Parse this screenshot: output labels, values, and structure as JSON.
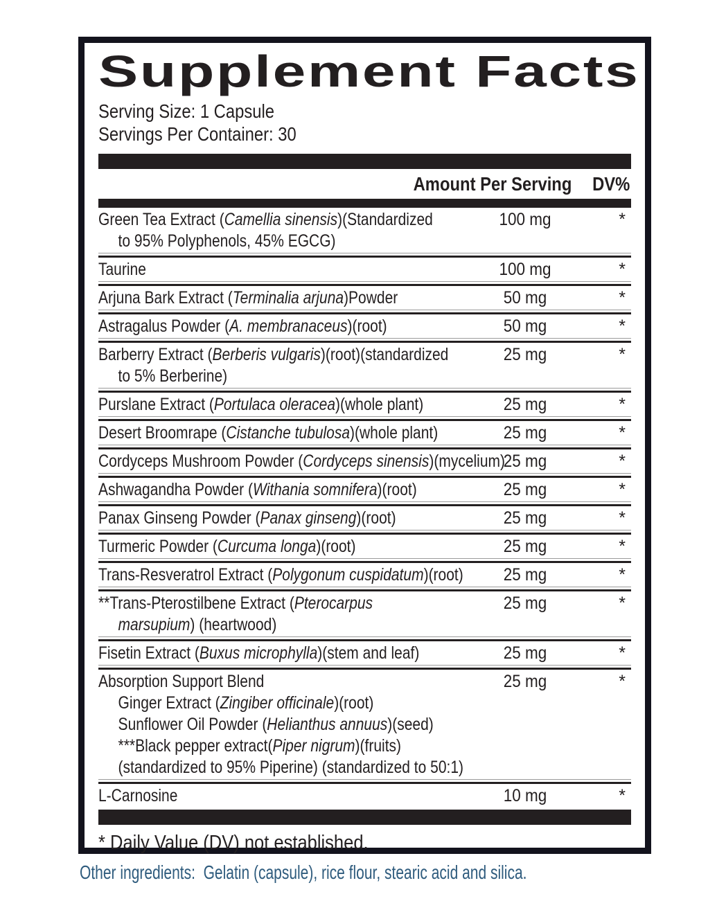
{
  "panel": {
    "title": "Supplement Facts",
    "serving_size": "Serving Size: 1 Capsule",
    "servings_per_container": "Servings Per Container: 30",
    "columns": {
      "amount": "Amount Per Serving",
      "dv": "DV%"
    },
    "rows": [
      {
        "amount": "100 mg",
        "dv": "*",
        "lines": [
          {
            "indent": false,
            "seg": [
              {
                "t": "Green Tea Extract (",
                "i": false
              },
              {
                "t": "Camellia sinensis",
                "i": true
              },
              {
                "t": ")(Standardized",
                "i": false
              }
            ]
          },
          {
            "indent": true,
            "seg": [
              {
                "t": "to 95% Polyphenols, 45% EGCG)",
                "i": false
              }
            ]
          }
        ]
      },
      {
        "amount": "100 mg",
        "dv": "*",
        "lines": [
          {
            "indent": false,
            "seg": [
              {
                "t": "Taurine",
                "i": false
              }
            ]
          }
        ]
      },
      {
        "amount": "50 mg",
        "dv": "*",
        "lines": [
          {
            "indent": false,
            "seg": [
              {
                "t": "Arjuna Bark Extract (",
                "i": false
              },
              {
                "t": "Terminalia arjuna",
                "i": true
              },
              {
                "t": ")Powder",
                "i": false
              }
            ]
          }
        ]
      },
      {
        "amount": "50 mg",
        "dv": "*",
        "lines": [
          {
            "indent": false,
            "seg": [
              {
                "t": "Astragalus Powder (",
                "i": false
              },
              {
                "t": "A. membranaceus",
                "i": true
              },
              {
                "t": ")(root)",
                "i": false
              }
            ]
          }
        ]
      },
      {
        "amount": "25 mg",
        "dv": "*",
        "lines": [
          {
            "indent": false,
            "seg": [
              {
                "t": "Barberry Extract (",
                "i": false
              },
              {
                "t": "Berberis vulgaris",
                "i": true
              },
              {
                "t": ")(root)(standardized",
                "i": false
              }
            ]
          },
          {
            "indent": true,
            "seg": [
              {
                "t": "to 5% Berberine)",
                "i": false
              }
            ]
          }
        ]
      },
      {
        "amount": "25 mg",
        "dv": "*",
        "lines": [
          {
            "indent": false,
            "seg": [
              {
                "t": "Purslane Extract (",
                "i": false
              },
              {
                "t": "Portulaca oleracea",
                "i": true
              },
              {
                "t": ")(whole plant)",
                "i": false
              }
            ]
          }
        ]
      },
      {
        "amount": "25 mg",
        "dv": "*",
        "lines": [
          {
            "indent": false,
            "seg": [
              {
                "t": "Desert Broomrape (",
                "i": false
              },
              {
                "t": "Cistanche tubulosa",
                "i": true
              },
              {
                "t": ")(whole plant)",
                "i": false
              }
            ]
          }
        ]
      },
      {
        "amount": "25 mg",
        "dv": "*",
        "lines": [
          {
            "indent": false,
            "seg": [
              {
                "t": "Cordyceps Mushroom Powder (",
                "i": false
              },
              {
                "t": "Cordyceps sinensis",
                "i": true
              },
              {
                "t": ")(mycelium)",
                "i": false
              }
            ]
          }
        ]
      },
      {
        "amount": "25 mg",
        "dv": "*",
        "lines": [
          {
            "indent": false,
            "seg": [
              {
                "t": "Ashwagandha Powder (",
                "i": false
              },
              {
                "t": "Withania somnifera",
                "i": true
              },
              {
                "t": ")(root)",
                "i": false
              }
            ]
          }
        ]
      },
      {
        "amount": "25 mg",
        "dv": "*",
        "lines": [
          {
            "indent": false,
            "seg": [
              {
                "t": "Panax Ginseng Powder (",
                "i": false
              },
              {
                "t": "Panax ginseng",
                "i": true
              },
              {
                "t": ")(root)",
                "i": false
              }
            ]
          }
        ]
      },
      {
        "amount": "25 mg",
        "dv": "*",
        "lines": [
          {
            "indent": false,
            "seg": [
              {
                "t": "Turmeric Powder (",
                "i": false
              },
              {
                "t": "Curcuma longa",
                "i": true
              },
              {
                "t": ")(root)",
                "i": false
              }
            ]
          }
        ]
      },
      {
        "amount": "25 mg",
        "dv": "*",
        "lines": [
          {
            "indent": false,
            "seg": [
              {
                "t": "Trans-Resveratrol Extract (",
                "i": false
              },
              {
                "t": "Polygonum cuspidatum",
                "i": true
              },
              {
                "t": ")(root)",
                "i": false
              }
            ]
          }
        ]
      },
      {
        "amount": "25 mg",
        "dv": "*",
        "lines": [
          {
            "indent": false,
            "seg": [
              {
                "t": "**Trans-Pterostilbene Extract (",
                "i": false
              },
              {
                "t": "Pterocarpus",
                "i": true
              }
            ]
          },
          {
            "indent": true,
            "seg": [
              {
                "t": "marsupium",
                "i": true
              },
              {
                "t": ") (heartwood)",
                "i": false
              }
            ]
          }
        ]
      },
      {
        "amount": "25 mg",
        "dv": "*",
        "lines": [
          {
            "indent": false,
            "seg": [
              {
                "t": "Fisetin Extract (",
                "i": false
              },
              {
                "t": "Buxus microphylla",
                "i": true
              },
              {
                "t": ")(stem and leaf)",
                "i": false
              }
            ]
          }
        ]
      },
      {
        "amount": "25 mg",
        "dv": "*",
        "lines": [
          {
            "indent": false,
            "seg": [
              {
                "t": "Absorption Support Blend",
                "i": false
              }
            ]
          },
          {
            "indent": true,
            "seg": [
              {
                "t": "Ginger Extract (",
                "i": false
              },
              {
                "t": "Zingiber officinale",
                "i": true
              },
              {
                "t": ")(root)",
                "i": false
              }
            ]
          },
          {
            "indent": true,
            "seg": [
              {
                "t": "Sunflower Oil Powder (",
                "i": false
              },
              {
                "t": "Helianthus annuus",
                "i": true
              },
              {
                "t": ")(seed)",
                "i": false
              }
            ]
          },
          {
            "indent": true,
            "seg": [
              {
                "t": "***Black pepper extract(",
                "i": false
              },
              {
                "t": "Piper nigrum",
                "i": true
              },
              {
                "t": ")(fruits)",
                "i": false
              }
            ]
          },
          {
            "indent": true,
            "seg": [
              {
                "t": "(standardized to 95% Piperine) (standardized to 50:1)",
                "i": false
              }
            ]
          }
        ]
      },
      {
        "amount": "10 mg",
        "dv": "*",
        "lines": [
          {
            "indent": false,
            "seg": [
              {
                "t": "L-Carnosine",
                "i": false
              }
            ]
          }
        ]
      }
    ],
    "footnote": "* Daily Value (DV) not established.",
    "other_ingredients": "Other ingredients:  Gelatin (capsule), rice flour, stearic acid and silica."
  },
  "colors": {
    "ink": "#231f20",
    "panel_border": "#13131d",
    "other_ingredients_text": "#2e5b7d",
    "separator_shadow": "#9b9b9b"
  }
}
